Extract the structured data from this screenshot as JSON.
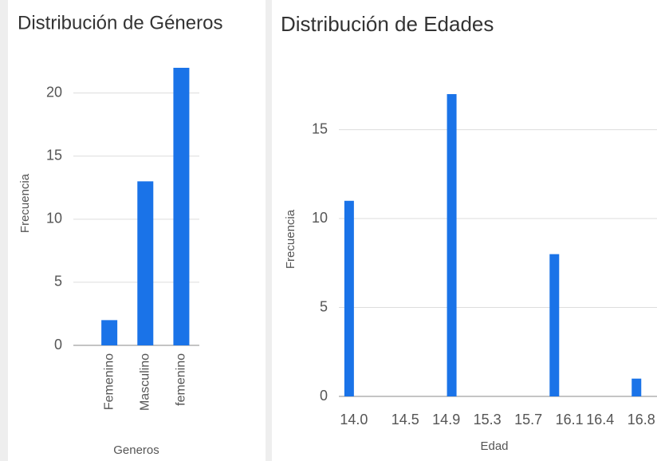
{
  "chart_data": [
    {
      "type": "bar",
      "title": "Distribución de Géneros",
      "x_label": "Generos",
      "y_label": "Frecuencia",
      "categories": [
        "Femenino",
        "Masculino",
        "femenino"
      ],
      "values": [
        2,
        13,
        22
      ],
      "color": "#1a73e8",
      "ylim": [
        0,
        22
      ],
      "yticks": [
        0,
        5,
        10,
        15,
        20
      ],
      "grid": true
    },
    {
      "type": "histogram",
      "title": "Distribución de Edades",
      "x_label": "Edad",
      "y_label": "Frecuencia",
      "x": [
        14,
        15,
        16,
        16.8
      ],
      "values": [
        11,
        17,
        8,
        1
      ],
      "color": "#1a73e8",
      "xlim": [
        13.9,
        17.0
      ],
      "xticks": [
        {
          "value": 14.0,
          "label": "14.0"
        },
        14.5,
        14.9,
        15.3,
        15.7,
        16.1,
        16.4,
        16.8
      ],
      "ylim": [
        0,
        17
      ],
      "yticks": [
        0,
        5,
        10,
        15
      ],
      "grid": true
    }
  ]
}
